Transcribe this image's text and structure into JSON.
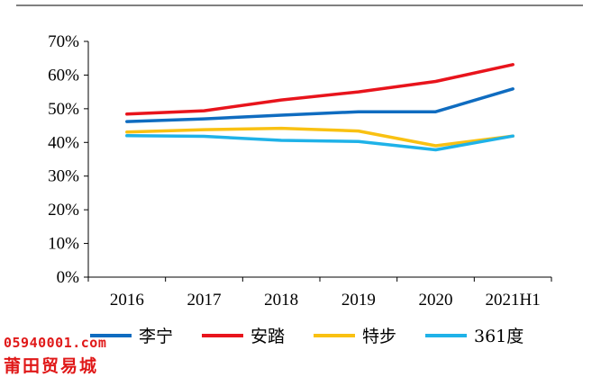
{
  "chart_data": {
    "type": "line",
    "categories": [
      "2016",
      "2017",
      "2018",
      "2019",
      "2020",
      "2021H1"
    ],
    "series": [
      {
        "name": "李宁",
        "color": "#0f6cc0",
        "values": [
          46.2,
          47.0,
          48.1,
          49.1,
          49.1,
          55.9
        ]
      },
      {
        "name": "安踏",
        "color": "#e8141c",
        "values": [
          48.4,
          49.4,
          52.6,
          55.0,
          58.1,
          63.1
        ]
      },
      {
        "name": "特步",
        "color": "#f9c112",
        "values": [
          43.1,
          43.8,
          44.2,
          43.4,
          39.0,
          41.9
        ]
      },
      {
        "name": "361度",
        "color": "#1fb2e8",
        "values": [
          42.0,
          41.8,
          40.6,
          40.3,
          37.8,
          41.9
        ]
      }
    ],
    "y_ticks": [
      "0%",
      "10%",
      "20%",
      "30%",
      "40%",
      "50%",
      "60%",
      "70%"
    ],
    "ylim": [
      0,
      70
    ],
    "grid": false,
    "legend_position": "bottom"
  },
  "watermark": {
    "line1": "05940001.com",
    "line2": "莆田贸易城"
  }
}
